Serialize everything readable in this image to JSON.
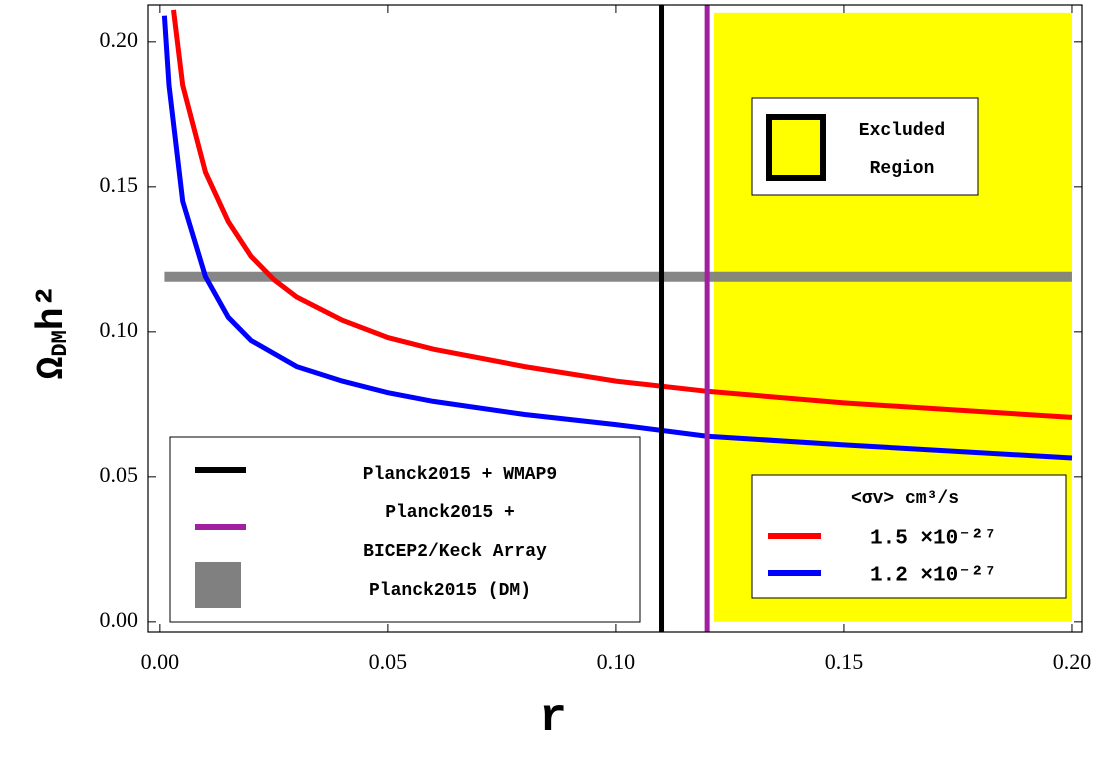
{
  "chart_data": {
    "type": "line",
    "xlabel": "r",
    "ylabel": {
      "symbol": "Ω",
      "subscript": "DM",
      "rest": "h²"
    },
    "xlim": [
      -0.0026,
      0.2022
    ],
    "ylim": [
      -0.0035,
      0.2127
    ],
    "xticks": [
      {
        "value": 0,
        "label": "0.00"
      },
      {
        "value": 0.05,
        "label": "0.05"
      },
      {
        "value": 0.1,
        "label": "0.10"
      },
      {
        "value": 0.15,
        "label": "0.15"
      },
      {
        "value": 0.2,
        "label": "0.20"
      }
    ],
    "yticks": [
      {
        "value": 0,
        "label": "0.00"
      },
      {
        "value": 0.05,
        "label": "0.05"
      },
      {
        "value": 0.1,
        "label": "0.10"
      },
      {
        "value": 0.15,
        "label": "0.15"
      },
      {
        "value": 0.2,
        "label": "0.20"
      }
    ],
    "legend_title": "<σv> cm³/s",
    "series": [
      {
        "name": "1.5 ×10⁻²⁷",
        "color": "#ff0000",
        "x": [
          0.003,
          0.005,
          0.01,
          0.015,
          0.02,
          0.025,
          0.03,
          0.04,
          0.05,
          0.06,
          0.08,
          0.1,
          0.12,
          0.15,
          0.2
        ],
        "values": [
          0.211,
          0.185,
          0.155,
          0.138,
          0.126,
          0.118,
          0.112,
          0.104,
          0.098,
          0.094,
          0.088,
          0.083,
          0.0795,
          0.0755,
          0.0705
        ]
      },
      {
        "name": "1.2 ×10⁻²⁷",
        "color": "#0000ff",
        "x": [
          0.001,
          0.002,
          0.005,
          0.01,
          0.015,
          0.02,
          0.03,
          0.04,
          0.05,
          0.06,
          0.08,
          0.1,
          0.12,
          0.15,
          0.2
        ],
        "values": [
          0.209,
          0.185,
          0.145,
          0.119,
          0.105,
          0.097,
          0.088,
          0.083,
          0.079,
          0.076,
          0.0715,
          0.068,
          0.064,
          0.061,
          0.0565
        ]
      }
    ],
    "vlines": [
      {
        "name": "Planck2015 + WMAP9",
        "x": 0.11,
        "color": "#000000"
      },
      {
        "name": [
          "Planck2015 +",
          "BICEP2/Keck Array"
        ],
        "x": 0.12,
        "color": "#a020a0"
      }
    ],
    "hline": {
      "name": "Planck2015 (DM)",
      "y": 0.119,
      "color": "#808080"
    },
    "excluded_region": {
      "name": [
        "Excluded",
        "Region"
      ],
      "x0": 0.1215,
      "x1": 0.2,
      "y0": 0,
      "y1": 0.21,
      "color": "#ffff00"
    }
  }
}
